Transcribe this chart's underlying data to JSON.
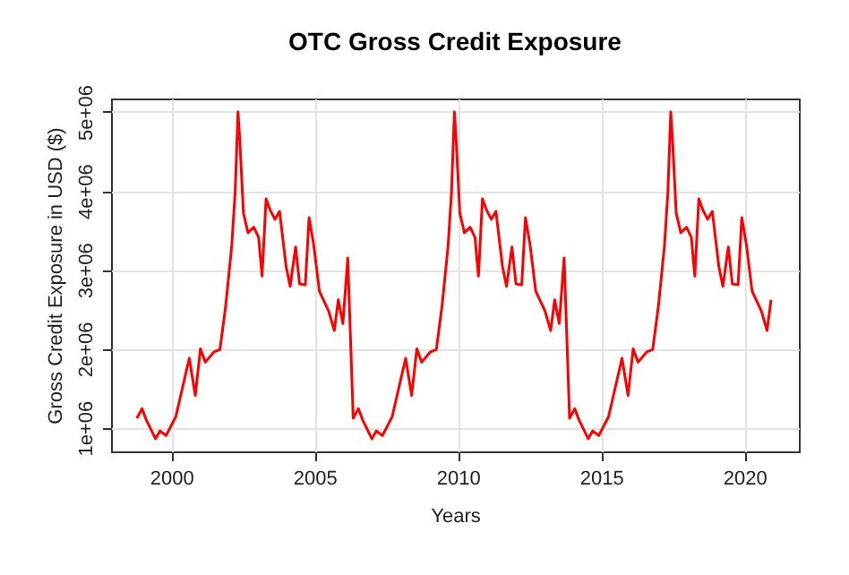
{
  "chart_data": {
    "type": "line",
    "title": "OTC Gross Credit Exposure",
    "xlabel": "Years",
    "ylabel": "Gross Credit Exposure in USD ($)",
    "x": [
      1998.8,
      1998.98,
      1999.14,
      1999.45,
      1999.61,
      1999.82,
      2000.16,
      2000.63,
      2000.84,
      2001.02,
      2001.19,
      2001.49,
      2001.7,
      2001.9,
      2002.11,
      2002.23,
      2002.33,
      2002.39,
      2002.52,
      2002.68,
      2002.88,
      2003.05,
      2003.17,
      2003.31,
      2003.46,
      2003.62,
      2003.78,
      2004.01,
      2004.15,
      2004.34,
      2004.48,
      2004.68,
      2004.81,
      2004.97,
      2005.17,
      2005.5,
      2005.69,
      2005.83,
      2005.99,
      2006.16,
      2006.35,
      2006.53,
      2006.69,
      2007.0,
      2007.16,
      2007.37,
      2007.71,
      2008.18,
      2008.39,
      2008.57,
      2008.74,
      2009.04,
      2009.25,
      2009.45,
      2009.66,
      2009.78,
      2009.88,
      2009.94,
      2010.07,
      2010.23,
      2010.43,
      2010.6,
      2010.72,
      2010.86,
      2011.01,
      2011.17,
      2011.33,
      2011.56,
      2011.7,
      2011.89,
      2012.03,
      2012.23,
      2012.36,
      2012.52,
      2012.72,
      2013.05,
      2013.24,
      2013.38,
      2013.54,
      2013.71,
      2013.9,
      2014.08,
      2014.24,
      2014.55,
      2014.71,
      2014.92,
      2015.26,
      2015.73,
      2015.94,
      2016.12,
      2016.29,
      2016.59,
      2016.8,
      2017.0,
      2017.21,
      2017.33,
      2017.43,
      2017.49,
      2017.62,
      2017.78,
      2017.98,
      2018.15,
      2018.27,
      2018.41,
      2018.56,
      2018.72,
      2018.88,
      2019.11,
      2019.25,
      2019.44,
      2019.58,
      2019.78,
      2019.91,
      2020.07,
      2020.27,
      2020.6,
      2020.79,
      2020.93
    ],
    "series": [
      {
        "color": "#ff0000",
        "values": [
          1120000,
          1240000,
          1090000,
          860000,
          960000,
          900000,
          1140000,
          1880000,
          1410000,
          2000000,
          1830000,
          1960000,
          1990000,
          2540000,
          3300000,
          3980000,
          5000000,
          4660000,
          3720000,
          3470000,
          3540000,
          3410000,
          2920000,
          3900000,
          3750000,
          3640000,
          3740000,
          3040000,
          2790000,
          3290000,
          2820000,
          2810000,
          3660000,
          3320000,
          2730000,
          2470000,
          2230000,
          2620000,
          2320000,
          3150000,
          1120000,
          1240000,
          1090000,
          860000,
          960000,
          900000,
          1140000,
          1880000,
          1410000,
          2000000,
          1830000,
          1960000,
          1990000,
          2540000,
          3300000,
          3980000,
          5000000,
          4660000,
          3720000,
          3470000,
          3540000,
          3410000,
          2920000,
          3900000,
          3750000,
          3640000,
          3740000,
          3040000,
          2790000,
          3290000,
          2820000,
          2810000,
          3660000,
          3320000,
          2730000,
          2470000,
          2230000,
          2620000,
          2320000,
          3150000,
          1120000,
          1240000,
          1090000,
          860000,
          960000,
          900000,
          1140000,
          1880000,
          1410000,
          2000000,
          1830000,
          1960000,
          1990000,
          2540000,
          3300000,
          3980000,
          5000000,
          4660000,
          3720000,
          3470000,
          3540000,
          3410000,
          2920000,
          3900000,
          3750000,
          3640000,
          3740000,
          3040000,
          2790000,
          3290000,
          2820000,
          2810000,
          3660000,
          3320000,
          2730000,
          2470000,
          2230000,
          2620000
        ]
      }
    ],
    "xlim": [
      1997.9,
      2021.9
    ],
    "xticks": [
      2000,
      2005,
      2010,
      2015,
      2020
    ],
    "ylim": [
      700000,
      5170000
    ],
    "yticks": [
      {
        "value": 1000000,
        "label": "1e+06"
      },
      {
        "value": 2000000,
        "label": "2e+06"
      },
      {
        "value": 3000000,
        "label": "3e+06"
      },
      {
        "value": 4000000,
        "label": "4e+06"
      },
      {
        "value": 5000000,
        "label": "5e+06"
      }
    ],
    "grid": true,
    "line_style": "solid"
  }
}
